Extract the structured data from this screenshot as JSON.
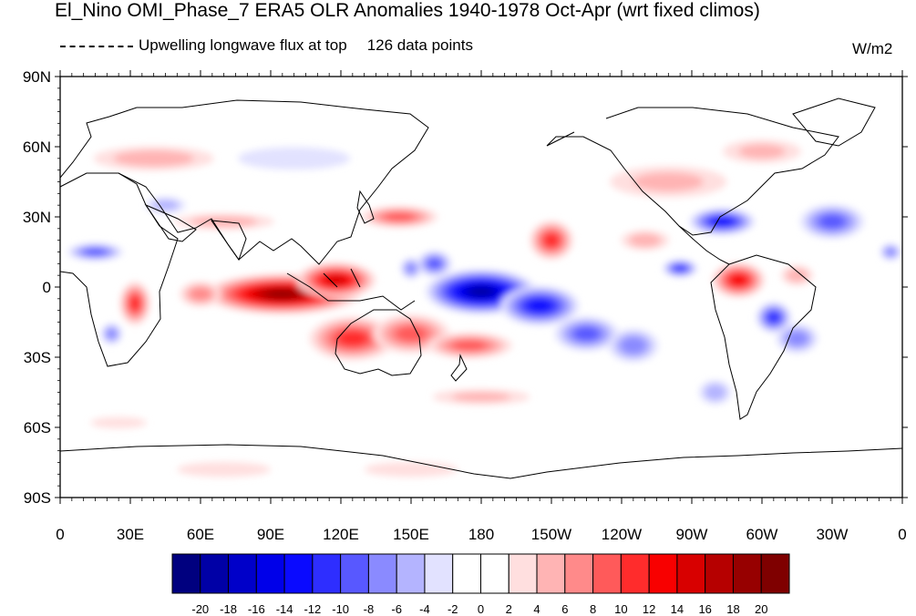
{
  "title": "El_Nino OMI_Phase_7 ERA5 OLR Anomalies 1940-1978 Oct-Apr (wrt fixed climos)",
  "legend": {
    "line_label": "Upwelling longwave flux at top",
    "count_label": "126 data points"
  },
  "units": "W/m2",
  "lat_ticks": [
    "90N",
    "60N",
    "30N",
    "0",
    "30S",
    "60S",
    "90S"
  ],
  "lon_ticks": [
    "0",
    "30E",
    "60E",
    "90E",
    "120E",
    "150E",
    "180",
    "150W",
    "120W",
    "90W",
    "60W",
    "30W",
    "0"
  ],
  "colorbar": {
    "colors": [
      "#00007f",
      "#0000a6",
      "#0000c9",
      "#0000e9",
      "#0a0aff",
      "#2e2eff",
      "#5858ff",
      "#8a8aff",
      "#b4b4ff",
      "#e2e2ff",
      "#ffffff",
      "#ffffff",
      "#ffdfdf",
      "#ffb4b4",
      "#ff8a8a",
      "#ff5a5a",
      "#ff2c2c",
      "#f80000",
      "#d80000",
      "#b60000",
      "#970000",
      "#7f0000"
    ],
    "labels": [
      "-20",
      "-18",
      "-16",
      "-14",
      "-12",
      "-10",
      "-8",
      "-6",
      "-4",
      "-2",
      "0",
      "2",
      "4",
      "6",
      "8",
      "10",
      "12",
      "14",
      "16",
      "18",
      "20"
    ]
  },
  "map_data": {
    "projection": "cylindrical-equidistant",
    "lon_range": [
      0,
      360
    ],
    "lat_range": [
      -90,
      90
    ],
    "anomalies": [
      {
        "lon": 95,
        "lat": -3,
        "value": 20,
        "rlon": 35,
        "rlat": 9
      },
      {
        "lon": 118,
        "lat": 3,
        "value": 16,
        "rlon": 18,
        "rlat": 8
      },
      {
        "lon": 125,
        "lat": -22,
        "value": 12,
        "rlon": 20,
        "rlat": 10
      },
      {
        "lon": 32,
        "lat": -7,
        "value": 12,
        "rlon": 7,
        "rlat": 10
      },
      {
        "lon": 150,
        "lat": -20,
        "value": 10,
        "rlon": 18,
        "rlat": 9
      },
      {
        "lon": 175,
        "lat": -25,
        "value": 10,
        "rlon": 20,
        "rlat": 6
      },
      {
        "lon": 145,
        "lat": 30,
        "value": 10,
        "rlon": 18,
        "rlat": 5
      },
      {
        "lon": 210,
        "lat": 20,
        "value": 12,
        "rlon": 10,
        "rlat": 9
      },
      {
        "lon": 290,
        "lat": 3,
        "value": 14,
        "rlon": 12,
        "rlat": 8
      },
      {
        "lon": 60,
        "lat": -3,
        "value": 8,
        "rlon": 10,
        "rlat": 6
      },
      {
        "lon": 40,
        "lat": 55,
        "value": 6,
        "rlon": 30,
        "rlat": 6
      },
      {
        "lon": 70,
        "lat": 28,
        "value": 6,
        "rlon": 25,
        "rlat": 4
      },
      {
        "lon": 180,
        "lat": -2,
        "value": -20,
        "rlon": 25,
        "rlat": 10
      },
      {
        "lon": 205,
        "lat": -8,
        "value": -14,
        "rlon": 18,
        "rlat": 9
      },
      {
        "lon": 160,
        "lat": 10,
        "value": -10,
        "rlon": 8,
        "rlat": 6
      },
      {
        "lon": 225,
        "lat": -20,
        "value": -10,
        "rlon": 15,
        "rlat": 8
      },
      {
        "lon": 245,
        "lat": -25,
        "value": -8,
        "rlon": 12,
        "rlat": 8
      },
      {
        "lon": 283,
        "lat": 28,
        "value": -14,
        "rlon": 15,
        "rlat": 6
      },
      {
        "lon": 265,
        "lat": 8,
        "value": -12,
        "rlon": 8,
        "rlat": 4
      },
      {
        "lon": 305,
        "lat": -13,
        "value": -12,
        "rlon": 8,
        "rlat": 7
      },
      {
        "lon": 330,
        "lat": 28,
        "value": -10,
        "rlon": 15,
        "rlat": 8
      },
      {
        "lon": 15,
        "lat": 15,
        "value": -10,
        "rlon": 13,
        "rlat": 4
      },
      {
        "lon": 355,
        "lat": 15,
        "value": -8,
        "rlon": 5,
        "rlat": 4
      },
      {
        "lon": 22,
        "lat": -20,
        "value": -8,
        "rlon": 5,
        "rlat": 5
      },
      {
        "lon": 100,
        "lat": 55,
        "value": -4,
        "rlon": 30,
        "rlat": 6
      },
      {
        "lon": 45,
        "lat": 35,
        "value": -6,
        "rlon": 10,
        "rlat": 4
      },
      {
        "lon": 150,
        "lat": 8,
        "value": -8,
        "rlon": 5,
        "rlat": 5
      },
      {
        "lon": 315,
        "lat": -22,
        "value": -8,
        "rlon": 10,
        "rlat": 7
      },
      {
        "lon": 250,
        "lat": 20,
        "value": 6,
        "rlon": 12,
        "rlat": 5
      },
      {
        "lon": 315,
        "lat": 5,
        "value": 6,
        "rlon": 8,
        "rlat": 5
      },
      {
        "lon": 260,
        "lat": 45,
        "value": 5,
        "rlon": 30,
        "rlat": 8
      },
      {
        "lon": 300,
        "lat": 58,
        "value": 5,
        "rlon": 20,
        "rlat": 6
      },
      {
        "lon": 180,
        "lat": -47,
        "value": 5,
        "rlon": 25,
        "rlat": 4
      },
      {
        "lon": 70,
        "lat": -78,
        "value": 4,
        "rlon": 25,
        "rlat": 4
      },
      {
        "lon": 150,
        "lat": -78,
        "value": 4,
        "rlon": 25,
        "rlat": 4
      },
      {
        "lon": 280,
        "lat": -45,
        "value": -6,
        "rlon": 8,
        "rlat": 6
      },
      {
        "lon": 25,
        "lat": -58,
        "value": 4,
        "rlon": 15,
        "rlat": 3
      }
    ]
  }
}
